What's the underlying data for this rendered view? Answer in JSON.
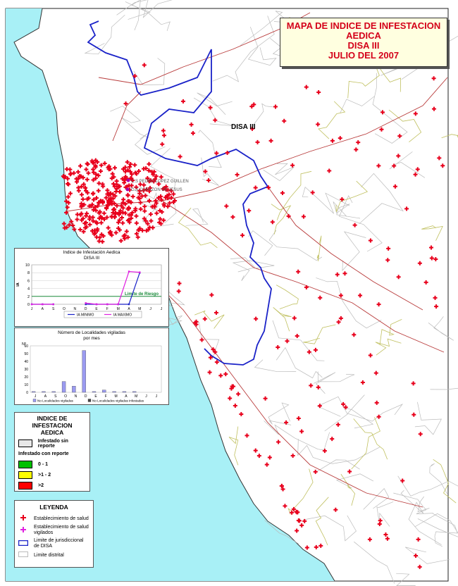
{
  "title": {
    "lines": [
      "MAPA DE INDICE DE INFESTACION",
      "AEDICA",
      "DISA III",
      "JULIO DEL 2007"
    ]
  },
  "map_labels": {
    "region": "DISA III",
    "centro1": "C.S PEDRO LOPEZ GUILLEN",
    "centro2": "C.S CORAZON DE JESUS"
  },
  "colors": {
    "sea": "#a8f0f6",
    "establishment": "#e8001c",
    "boundary": "#1a22c8",
    "rivers": "#c0c060",
    "roads": "#b83a3a"
  },
  "chart_data": [
    {
      "type": "line",
      "title": "Indice de Infestación Aedica",
      "subtitle": "DISA III",
      "ylabel": "IA",
      "categories": [
        "J",
        "A",
        "S",
        "O",
        "N",
        "D",
        "E",
        "F",
        "M",
        "A",
        "M",
        "J",
        "J"
      ],
      "ylim": [
        0,
        10
      ],
      "yticks": [
        0,
        2,
        4,
        6,
        8,
        10
      ],
      "threshold": {
        "label": "Limite de Riesgo",
        "value": 2
      },
      "series": [
        {
          "name": "IA MINIMO",
          "values": [
            0,
            0,
            0,
            null,
            null,
            0,
            0,
            0,
            0,
            0,
            8,
            null,
            null
          ]
        },
        {
          "name": "IA MAXIMO",
          "values": [
            0,
            0,
            0,
            null,
            null,
            0.3,
            0,
            0,
            0,
            8.3,
            8.1,
            null,
            null
          ]
        }
      ],
      "legend": "bottom"
    },
    {
      "type": "bar",
      "title": "Número de Localidades vigiladas",
      "subtitle": "por mes",
      "ylabel": "Nº",
      "categories": [
        "J",
        "A",
        "S",
        "O",
        "N",
        "D",
        "E",
        "F",
        "M",
        "A",
        "M",
        "J",
        "J"
      ],
      "ylim": [
        0,
        60
      ],
      "yticks": [
        0,
        10,
        20,
        30,
        40,
        50,
        60
      ],
      "series": [
        {
          "name": "No Localidades vigiladas",
          "values": [
            1,
            1,
            1,
            14,
            8,
            54,
            1,
            3,
            1,
            1,
            1,
            0,
            0
          ]
        },
        {
          "name": "No Localidades vigiladas infestadas",
          "values": [
            0,
            0,
            0,
            0,
            0,
            0,
            0,
            0,
            0,
            0,
            0,
            0,
            0
          ]
        }
      ],
      "legend": "bottom"
    }
  ],
  "infestation_legend": {
    "title": "INDICE DE INFESTACION\nAEDICA",
    "items": [
      {
        "label": "Infestado sin reporte",
        "color": "#e8e8e8"
      },
      {
        "label": "Infestado con reporte",
        "color": null
      },
      {
        "label": "0 - 1",
        "color": "#00c000"
      },
      {
        "label": ">1 - 2",
        "color": "#ffff00"
      },
      {
        "label": ">2",
        "color": "#ff0000"
      }
    ]
  },
  "leyenda": {
    "title": "LEYENDA",
    "items": [
      {
        "label": "Establecimiento de salud",
        "icon": "red-cross-icon"
      },
      {
        "label": "Establecimiento de salud vigilados",
        "icon": "magenta-cross-icon"
      },
      {
        "label": "Limite de jurisdiccional de DISA",
        "icon": "blue-line-icon"
      },
      {
        "label": "Limite distrital",
        "icon": "gray-box-icon"
      }
    ]
  }
}
